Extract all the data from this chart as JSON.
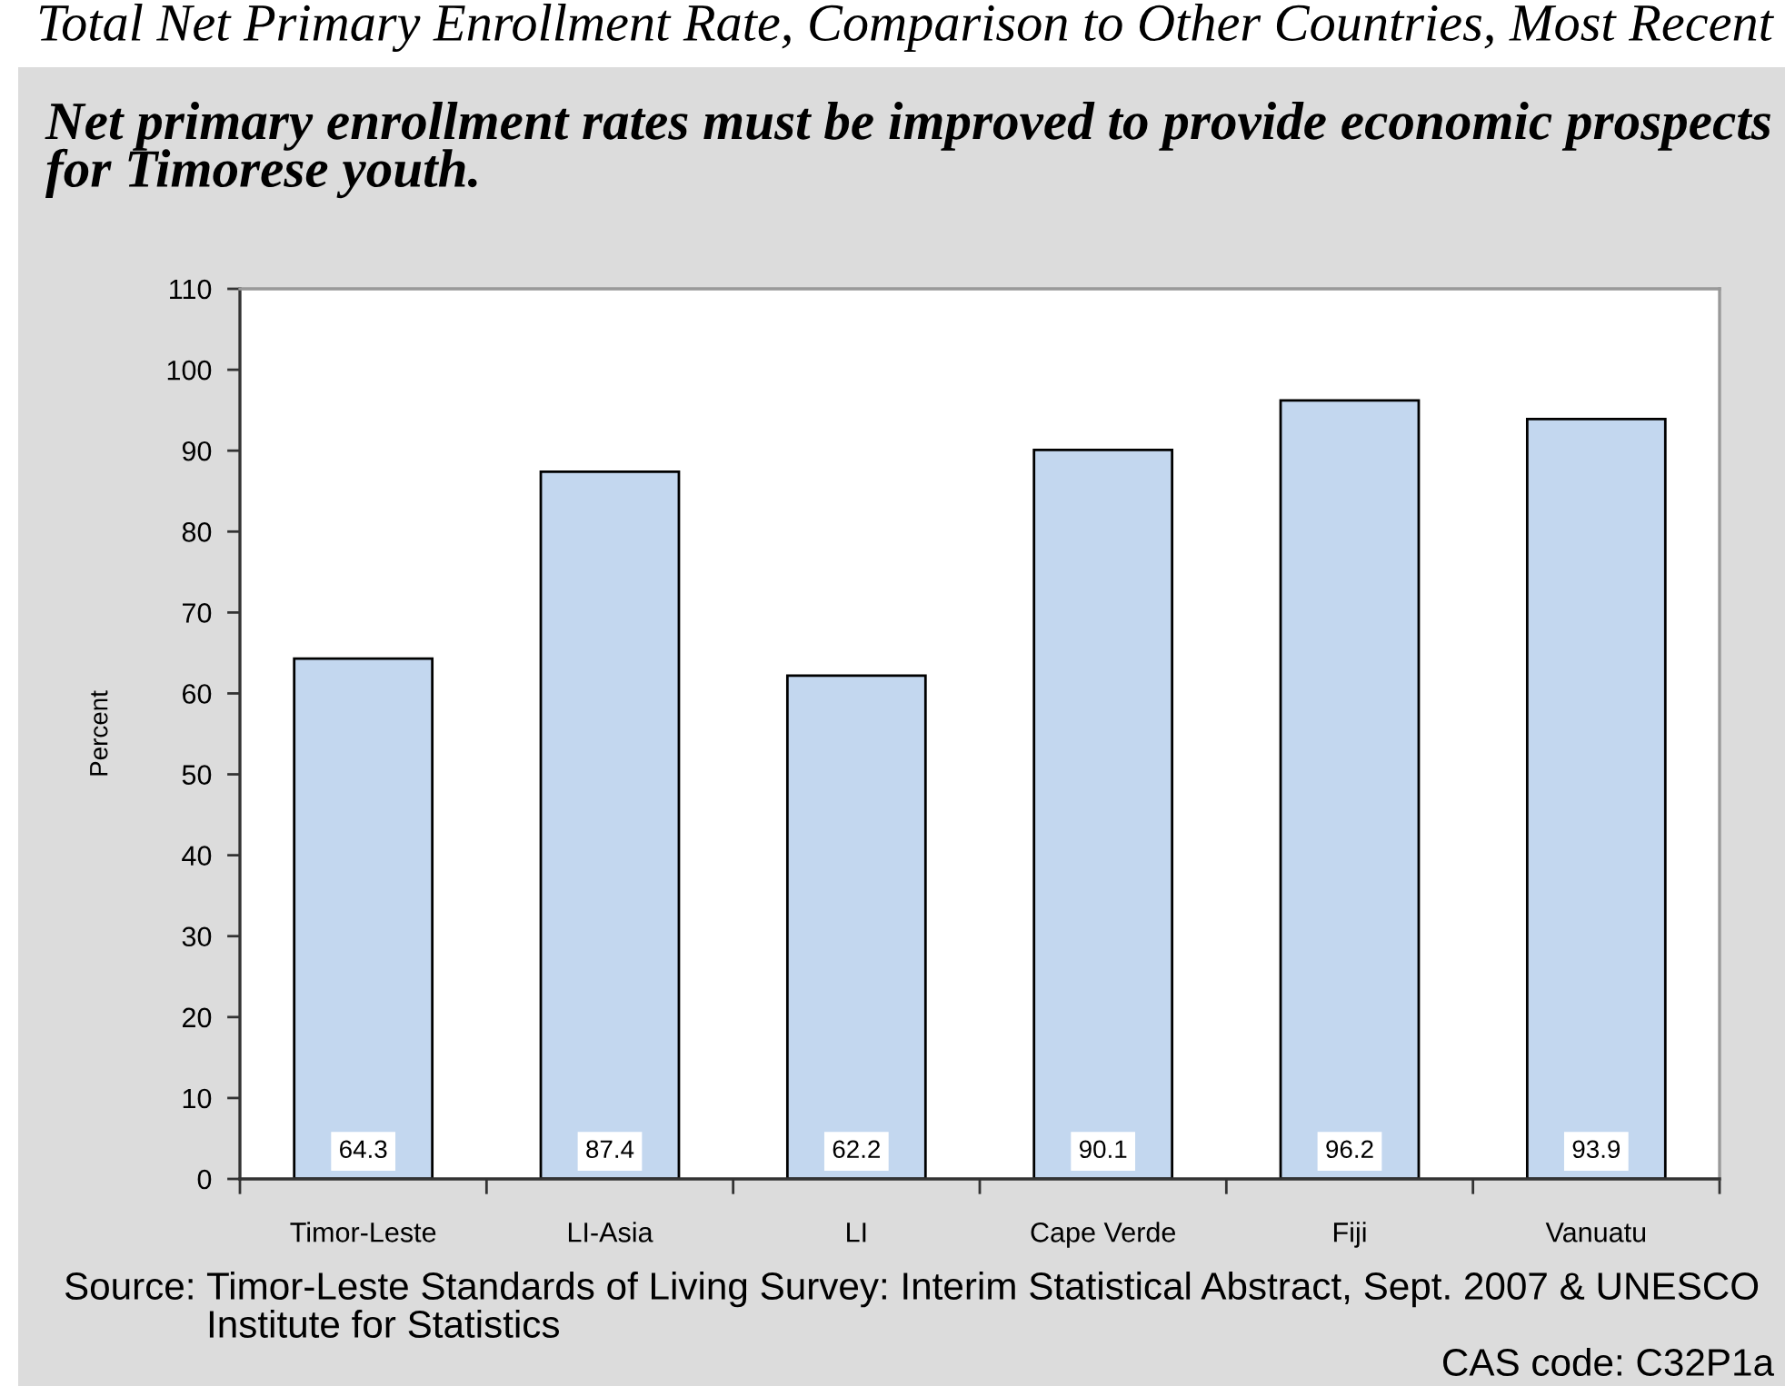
{
  "chart_data": {
    "type": "bar",
    "title": "Total Net Primary Enrollment Rate, Comparison to Other Countries, Most Recent",
    "subtitle": "Net primary enrollment rates must be improved to provide economic prospects for Timorese youth.",
    "ylabel": "Percent",
    "categories": [
      "Timor-Leste",
      "LI-Asia",
      "LI",
      "Cape Verde",
      "Fiji",
      "Vanuatu"
    ],
    "values": [
      64.3,
      87.4,
      62.2,
      90.1,
      96.2,
      93.9
    ],
    "color": "#c3d7ef",
    "ylim": [
      0,
      110
    ],
    "yticks": [
      0,
      10,
      20,
      30,
      40,
      50,
      60,
      70,
      80,
      90,
      100,
      110
    ],
    "data_labels": true,
    "annotations": [
      "Source: Timor-Leste Standards of Living Survey: Interim Statistical Abstract, Sept. 2007 & UNESCO Institute for Statistics",
      "CAS code: C32P1a"
    ]
  }
}
